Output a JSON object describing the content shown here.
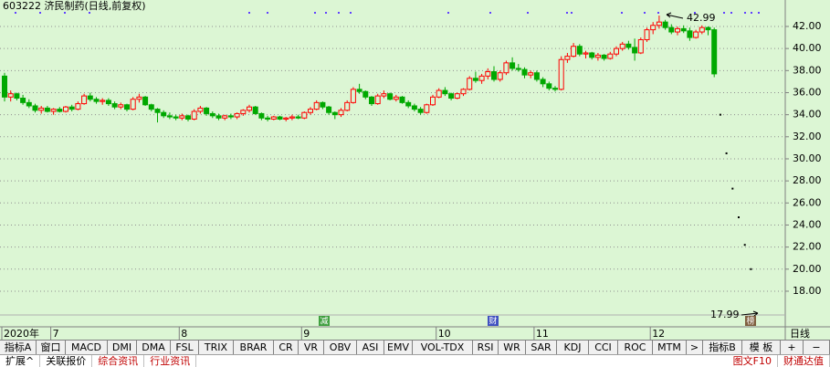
{
  "chart_data": {
    "type": "candlestick",
    "title": "603222 济民制药(日线,前复权)",
    "axis_caption": "日线",
    "categories": [
      "2020年",
      null,
      null,
      null,
      null,
      null,
      null,
      null,
      "7",
      null,
      null,
      null,
      null,
      null,
      null,
      null,
      null,
      null,
      null,
      null,
      null,
      null,
      null,
      null,
      null,
      null,
      null,
      null,
      null,
      "8",
      null,
      null,
      null,
      null,
      null,
      null,
      null,
      null,
      null,
      null,
      null,
      null,
      null,
      null,
      null,
      null,
      null,
      null,
      null,
      "9",
      null,
      null,
      null,
      null,
      null,
      null,
      null,
      null,
      null,
      null,
      null,
      null,
      null,
      null,
      null,
      null,
      null,
      null,
      null,
      null,
      null,
      "10",
      null,
      null,
      null,
      null,
      null,
      null,
      null,
      null,
      null,
      null,
      null,
      null,
      null,
      null,
      null,
      "11",
      null,
      null,
      null,
      null,
      null,
      null,
      null,
      null,
      null,
      null,
      null,
      null,
      null,
      null,
      null,
      null,
      null,
      null,
      "12",
      null,
      null,
      null,
      null,
      null,
      null,
      null,
      null,
      null,
      null,
      null,
      null,
      null,
      null,
      null,
      null
    ],
    "candles": [
      [
        37.5,
        37.8,
        35.2,
        35.6
      ],
      [
        35.6,
        36.2,
        35.2,
        35.9
      ],
      [
        35.9,
        36.0,
        35.3,
        35.5
      ],
      [
        35.5,
        35.8,
        34.9,
        35.1
      ],
      [
        35.1,
        35.4,
        34.6,
        34.8
      ],
      [
        34.8,
        35.0,
        34.2,
        34.4
      ],
      [
        34.4,
        34.8,
        34.1,
        34.6
      ],
      [
        34.6,
        34.8,
        34.2,
        34.3
      ],
      [
        34.3,
        34.6,
        34.0,
        34.5
      ],
      [
        34.5,
        34.7,
        34.2,
        34.3
      ],
      [
        34.3,
        34.8,
        34.2,
        34.7
      ],
      [
        34.7,
        34.9,
        34.3,
        34.5
      ],
      [
        34.5,
        35.2,
        34.4,
        35.0
      ],
      [
        35.0,
        35.9,
        34.9,
        35.7
      ],
      [
        35.7,
        36.0,
        35.2,
        35.4
      ],
      [
        35.4,
        35.6,
        35.0,
        35.2
      ],
      [
        35.2,
        35.5,
        34.9,
        35.3
      ],
      [
        35.3,
        35.5,
        34.8,
        35.0
      ],
      [
        35.0,
        35.2,
        34.5,
        34.7
      ],
      [
        34.7,
        35.1,
        34.5,
        34.9
      ],
      [
        34.9,
        35.0,
        34.3,
        34.5
      ],
      [
        34.5,
        35.6,
        34.4,
        35.4
      ],
      [
        35.4,
        35.9,
        35.1,
        35.6
      ],
      [
        35.6,
        35.7,
        34.8,
        34.9
      ],
      [
        34.9,
        35.0,
        34.3,
        34.5
      ],
      [
        34.5,
        34.6,
        33.3,
        34.2
      ],
      [
        34.2,
        34.4,
        33.7,
        33.9
      ],
      [
        33.9,
        34.2,
        33.6,
        33.8
      ],
      [
        33.8,
        34.0,
        33.5,
        33.7
      ],
      [
        33.7,
        34.1,
        33.5,
        33.9
      ],
      [
        33.9,
        34.0,
        33.4,
        33.6
      ],
      [
        33.6,
        34.5,
        33.5,
        34.3
      ],
      [
        34.3,
        34.8,
        34.1,
        34.6
      ],
      [
        34.6,
        34.7,
        33.9,
        34.1
      ],
      [
        34.1,
        34.3,
        33.7,
        33.9
      ],
      [
        33.9,
        34.1,
        33.5,
        33.7
      ],
      [
        33.7,
        34.0,
        33.5,
        33.9
      ],
      [
        33.9,
        34.1,
        33.6,
        33.8
      ],
      [
        33.8,
        34.2,
        33.6,
        34.1
      ],
      [
        34.1,
        34.5,
        33.9,
        34.4
      ],
      [
        34.4,
        34.9,
        34.2,
        34.7
      ],
      [
        34.7,
        34.8,
        34.0,
        34.1
      ],
      [
        34.1,
        34.2,
        33.5,
        33.7
      ],
      [
        33.7,
        33.9,
        33.4,
        33.6
      ],
      [
        33.6,
        33.9,
        33.5,
        33.8
      ],
      [
        33.8,
        33.9,
        33.5,
        33.6
      ],
      [
        33.6,
        33.8,
        33.4,
        33.7
      ],
      [
        33.7,
        34.0,
        33.5,
        33.8
      ],
      [
        33.8,
        34.0,
        33.6,
        33.7
      ],
      [
        33.7,
        34.3,
        33.6,
        34.2
      ],
      [
        34.2,
        34.7,
        34.0,
        34.5
      ],
      [
        34.5,
        35.3,
        34.4,
        35.1
      ],
      [
        35.1,
        35.2,
        34.5,
        34.7
      ],
      [
        34.7,
        34.8,
        34.0,
        34.2
      ],
      [
        34.2,
        34.3,
        33.6,
        34.0
      ],
      [
        34.0,
        34.6,
        33.8,
        34.4
      ],
      [
        34.4,
        35.3,
        34.3,
        35.1
      ],
      [
        35.1,
        36.5,
        35.0,
        36.3
      ],
      [
        36.3,
        36.8,
        35.9,
        36.1
      ],
      [
        36.1,
        36.2,
        35.4,
        35.6
      ],
      [
        35.6,
        35.7,
        34.8,
        35.0
      ],
      [
        35.0,
        35.9,
        34.9,
        35.7
      ],
      [
        35.7,
        36.2,
        35.5,
        35.9
      ],
      [
        35.9,
        36.0,
        35.3,
        35.4
      ],
      [
        35.4,
        35.8,
        35.2,
        35.6
      ],
      [
        35.6,
        35.7,
        35.0,
        35.1
      ],
      [
        35.1,
        35.3,
        34.6,
        34.8
      ],
      [
        34.8,
        35.0,
        34.3,
        34.5
      ],
      [
        34.5,
        34.7,
        34.0,
        34.2
      ],
      [
        34.2,
        35.0,
        34.1,
        34.9
      ],
      [
        34.9,
        35.8,
        34.8,
        35.6
      ],
      [
        35.6,
        36.4,
        35.5,
        36.2
      ],
      [
        36.2,
        36.5,
        35.7,
        35.9
      ],
      [
        35.9,
        36.0,
        35.3,
        35.5
      ],
      [
        35.5,
        36.0,
        35.4,
        35.9
      ],
      [
        35.9,
        36.4,
        35.7,
        36.3
      ],
      [
        36.3,
        37.5,
        36.2,
        37.3
      ],
      [
        37.3,
        37.9,
        36.9,
        37.1
      ],
      [
        37.1,
        37.7,
        36.8,
        37.5
      ],
      [
        37.5,
        38.2,
        37.2,
        37.9
      ],
      [
        37.9,
        38.4,
        37.0,
        37.2
      ],
      [
        37.2,
        38.0,
        37.0,
        37.8
      ],
      [
        37.8,
        38.9,
        37.6,
        38.7
      ],
      [
        38.7,
        39.2,
        38.0,
        38.2
      ],
      [
        38.2,
        38.6,
        37.9,
        38.1
      ],
      [
        38.1,
        38.3,
        37.3,
        37.6
      ],
      [
        37.6,
        38.0,
        37.3,
        37.8
      ],
      [
        37.8,
        38.0,
        37.0,
        37.2
      ],
      [
        37.2,
        37.4,
        36.5,
        36.8
      ],
      [
        36.8,
        37.0,
        36.2,
        36.4
      ],
      [
        36.4,
        36.6,
        36.1,
        36.3
      ],
      [
        36.3,
        39.3,
        36.2,
        39.0
      ],
      [
        39.0,
        39.6,
        38.7,
        39.3
      ],
      [
        39.3,
        40.5,
        39.2,
        40.2
      ],
      [
        40.2,
        40.4,
        39.3,
        39.5
      ],
      [
        39.5,
        39.8,
        39.1,
        39.6
      ],
      [
        39.6,
        39.7,
        39.0,
        39.2
      ],
      [
        39.2,
        39.6,
        38.9,
        39.4
      ],
      [
        39.4,
        39.5,
        38.9,
        39.1
      ],
      [
        39.1,
        39.7,
        39.0,
        39.5
      ],
      [
        39.5,
        40.2,
        39.3,
        40.0
      ],
      [
        40.0,
        40.6,
        39.8,
        40.4
      ],
      [
        40.4,
        40.7,
        39.9,
        40.1
      ],
      [
        40.1,
        40.9,
        38.9,
        39.6
      ],
      [
        39.6,
        41.0,
        39.5,
        40.8
      ],
      [
        40.8,
        41.9,
        40.6,
        41.7
      ],
      [
        41.7,
        42.4,
        41.3,
        42.1
      ],
      [
        42.1,
        42.99,
        41.8,
        42.4
      ],
      [
        42.4,
        42.6,
        41.7,
        41.9
      ],
      [
        41.9,
        42.2,
        41.3,
        41.5
      ],
      [
        41.5,
        42.0,
        41.2,
        41.8
      ],
      [
        41.8,
        42.1,
        41.4,
        41.6
      ],
      [
        41.6,
        41.9,
        40.7,
        41.0
      ],
      [
        41.0,
        41.7,
        40.9,
        41.5
      ],
      [
        41.5,
        42.1,
        41.3,
        41.9
      ],
      [
        41.9,
        42.0,
        41.2,
        41.7
      ],
      [
        41.7,
        41.9,
        37.4,
        37.7
      ]
    ],
    "up_color": "#ff0000",
    "down_color": "#00a800",
    "projection": {
      "x": [
        117,
        118,
        119,
        120,
        121,
        122
      ],
      "values": [
        34.0,
        30.5,
        27.3,
        24.7,
        22.2,
        20.0
      ]
    },
    "high_label": "42.99",
    "low_label": "17.99",
    "event_markers": [
      "减",
      "财",
      "榜"
    ],
    "ylim": [
      14.77,
      43.24
    ],
    "yticks": [
      {
        "value": 18,
        "label": "18.00"
      },
      {
        "value": 20,
        "label": "20.00"
      },
      {
        "value": 22,
        "label": "22.00"
      },
      {
        "value": 24,
        "label": "24.00"
      },
      {
        "value": 26,
        "label": "26.00"
      },
      {
        "value": 28,
        "label": "28.00"
      },
      {
        "value": 30,
        "label": "30.00"
      },
      {
        "value": 32,
        "label": "32.00"
      },
      {
        "value": 34,
        "label": "34.00"
      },
      {
        "value": 36,
        "label": "36.00"
      },
      {
        "value": 38,
        "label": "38.00"
      },
      {
        "value": 40,
        "label": "40.00"
      },
      {
        "value": 42,
        "label": "42.00"
      }
    ],
    "grid": true
  },
  "toolbar": {
    "tabs": [
      "指标A",
      "窗口",
      "MACD",
      "DMI",
      "DMA",
      "FSL",
      "TRIX",
      "BRAR",
      "CR",
      "VR",
      "OBV",
      "ASI",
      "EMV",
      "VOL-TDX",
      "RSI",
      "WR",
      "SAR",
      "KDJ",
      "CCI",
      "ROC",
      "MTM",
      ">",
      "指标B",
      "模 板",
      "+",
      "−"
    ],
    "links": [
      "扩展^",
      "关联报价",
      "综合资讯",
      "行业资讯"
    ],
    "right_links": [
      "图文F10",
      "财通达值"
    ]
  }
}
